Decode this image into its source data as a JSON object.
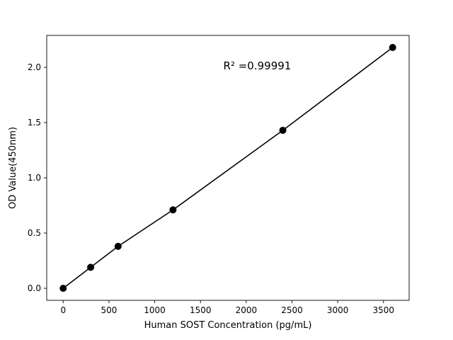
{
  "chart_data": {
    "type": "scatter",
    "title": "",
    "xlabel": "Human SOST Concentration (pg/mL)",
    "ylabel": "OD Value(450nm)",
    "x": [
      0,
      300,
      600,
      1200,
      2400,
      3600
    ],
    "y": [
      0.0,
      0.19,
      0.38,
      0.71,
      1.43,
      2.18
    ],
    "xlim": [
      -180,
      3780
    ],
    "ylim": [
      -0.109,
      2.289
    ],
    "xticks": [
      0,
      500,
      1000,
      1500,
      2000,
      2500,
      3000,
      3500
    ],
    "xtick_labels": [
      "0",
      "500",
      "1000",
      "1500",
      "2000",
      "2500",
      "3000",
      "3500"
    ],
    "yticks": [
      0.0,
      0.5,
      1.0,
      1.5,
      2.0
    ],
    "ytick_labels": [
      "0.0",
      "0.5",
      "1.0",
      "1.5",
      "2.0"
    ],
    "grid": false,
    "legend": null,
    "line": true,
    "line_color": "#000000",
    "marker_color": "#000000",
    "marker_radius": 5,
    "background_color": "#ffffff",
    "annotation": {
      "text": "R² =0.99991",
      "x": 1750,
      "y": 1.98
    }
  }
}
